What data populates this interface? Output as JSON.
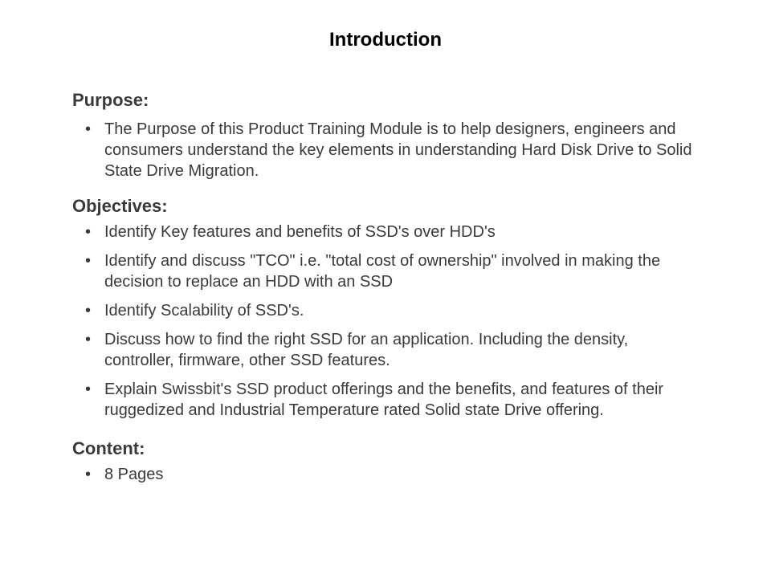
{
  "title": "Introduction",
  "sections": {
    "purpose": {
      "heading": "Purpose:",
      "items": [
        "The Purpose of this Product Training Module is to help designers, engineers and consumers understand the key elements in understanding Hard Disk Drive to Solid State Drive Migration."
      ]
    },
    "objectives": {
      "heading": "Objectives:",
      "items": [
        "Identify Key features and benefits of SSD's over HDD's",
        "Identify and discuss \"TCO\" i.e. \"total cost of ownership\" involved in making the decision to replace an HDD with an SSD",
        "Identify Scalability of SSD's.",
        "Discuss how to find the right SSD for an application. Including the density, controller, firmware, other SSD features.",
        "Explain Swissbit's SSD product offerings and the benefits, and features of their ruggedized and Industrial Temperature rated Solid state Drive offering."
      ]
    },
    "content": {
      "heading": "Content:",
      "items": [
        "8 Pages"
      ]
    }
  },
  "styling": {
    "background_color": "#ffffff",
    "text_color": "#3a3a3a",
    "title_color": "#000000",
    "title_fontsize": 24,
    "heading_fontsize": 22,
    "body_fontsize": 20,
    "font_family": "Arial"
  }
}
